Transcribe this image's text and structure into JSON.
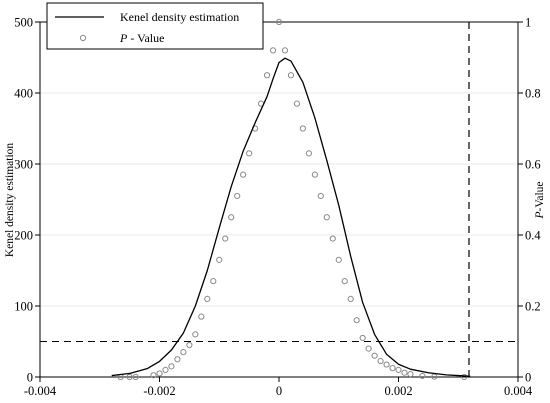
{
  "chart_data": {
    "type": "line",
    "legend": {
      "placement": "top-left",
      "entries": [
        {
          "label": "Kenel density estimation",
          "symbol": "line"
        },
        {
          "label_italic": "P",
          "label_rest": " - Value",
          "symbol": "hollow-circle"
        }
      ]
    },
    "x_axis": {
      "lim": [
        -0.004,
        0.004
      ],
      "ticks": [
        "-0.004",
        "-0.002",
        "0",
        "0.002",
        "0.004"
      ],
      "tick_values": [
        -0.004,
        -0.002,
        0,
        0.002,
        0.004
      ]
    },
    "y_left": {
      "label": "Kenel density estimation",
      "lim": [
        0,
        500
      ],
      "ticks": [
        "0",
        "100",
        "200",
        "300",
        "400",
        "500"
      ],
      "tick_values": [
        0,
        100,
        200,
        300,
        400,
        500
      ]
    },
    "y_right": {
      "label_italic": "P",
      "label_rest": "-Value",
      "lim": [
        0,
        1
      ],
      "ticks": [
        "0",
        "0.2",
        "0.4",
        "0.6",
        "0.8",
        "1"
      ],
      "tick_values": [
        0,
        0.2,
        0.4,
        0.6,
        0.8,
        1
      ]
    },
    "grid": true,
    "reference_lines": {
      "horizontal_left_axis": 50,
      "vertical_x": 0.00318
    },
    "series": [
      {
        "kind": "line",
        "axis": "left",
        "x": [
          -0.0028,
          -0.0025,
          -0.0022,
          -0.002,
          -0.0018,
          -0.0016,
          -0.0014,
          -0.0012,
          -0.001,
          -0.0008,
          -0.0006,
          -0.0004,
          -0.0002,
          -0.0001,
          0,
          0.0001,
          0.0002,
          0.0004,
          0.0006,
          0.0008,
          0.001,
          0.0012,
          0.0014,
          0.0016,
          0.0018,
          0.002,
          0.0022,
          0.0025,
          0.0028,
          0.003,
          0.0032
        ],
        "y": [
          2,
          5,
          12,
          22,
          38,
          62,
          100,
          150,
          210,
          268,
          318,
          358,
          395,
          420,
          443,
          449,
          445,
          415,
          365,
          305,
          242,
          170,
          105,
          60,
          32,
          18,
          11,
          6,
          3,
          2,
          1
        ]
      },
      {
        "kind": "scatter",
        "axis": "right",
        "marker": "hollow-circle",
        "color": "#8a8a8a",
        "x": [
          -0.00265,
          -0.0025,
          -0.0024,
          -0.0021,
          -0.002,
          -0.0019,
          -0.0018,
          -0.0017,
          -0.0016,
          -0.0015,
          -0.0014,
          -0.0013,
          -0.0012,
          -0.0011,
          -0.001,
          -0.0009,
          -0.0008,
          -0.0007,
          -0.0006,
          -0.0005,
          -0.0004,
          -0.0003,
          -0.0002,
          -0.0001,
          0,
          0.0001,
          0.0002,
          0.0003,
          0.0004,
          0.0005,
          0.0006,
          0.0007,
          0.0008,
          0.0009,
          0.001,
          0.0011,
          0.0012,
          0.0013,
          0.0014,
          0.0015,
          0.0016,
          0.0017,
          0.0018,
          0.0019,
          0.002,
          0.0021,
          0.0022,
          0.0024,
          0.0026,
          0.0031
        ],
        "y": [
          0,
          0,
          0,
          0.005,
          0.01,
          0.02,
          0.03,
          0.05,
          0.07,
          0.09,
          0.12,
          0.17,
          0.22,
          0.27,
          0.33,
          0.39,
          0.45,
          0.51,
          0.57,
          0.63,
          0.7,
          0.77,
          0.85,
          0.92,
          1.0,
          0.92,
          0.85,
          0.77,
          0.7,
          0.63,
          0.57,
          0.51,
          0.45,
          0.39,
          0.33,
          0.27,
          0.22,
          0.16,
          0.11,
          0.08,
          0.06,
          0.045,
          0.035,
          0.025,
          0.02,
          0.012,
          0.008,
          0.003,
          0.001,
          0
        ]
      }
    ]
  }
}
